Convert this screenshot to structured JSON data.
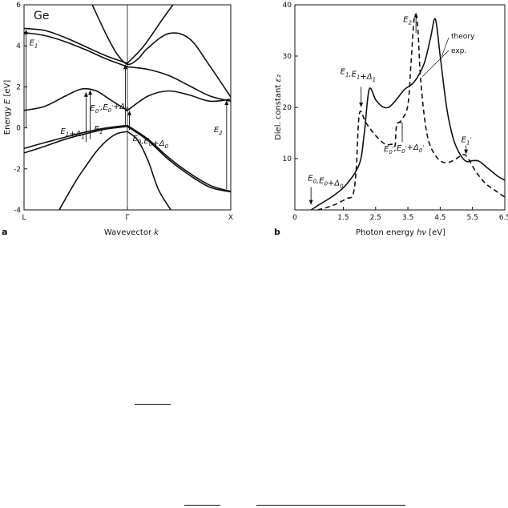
{
  "chart_data": [
    {
      "type": "line",
      "panel_label": "a",
      "title": "Ge",
      "xlabel": "Wavevector",
      "xlabel_symbol": "k",
      "ylabel": "Energy",
      "ylabel_symbol": "E",
      "ylabel_unit": "[eV]",
      "xlim": [
        0,
        1
      ],
      "ylim": [
        -4,
        6
      ],
      "grid": false,
      "x_ticks": [
        {
          "label": "L",
          "x": 0
        },
        {
          "label": "Γ",
          "x": 0.5
        },
        {
          "label": "X",
          "x": 1
        }
      ],
      "y_ticks": [
        -4,
        -2,
        0,
        2,
        4,
        6
      ],
      "series": [
        {
          "x": [
            0,
            0.1,
            0.2,
            0.3,
            0.4,
            0.5
          ],
          "values": [
            -1.0,
            -0.72,
            -0.45,
            -0.2,
            0.0,
            0.12
          ]
        },
        {
          "x": [
            0,
            0.1,
            0.2,
            0.3,
            0.4,
            0.5
          ],
          "values": [
            -1.22,
            -0.9,
            -0.55,
            -0.28,
            -0.05,
            0.07
          ]
        },
        {
          "x": [
            0.17,
            0.25,
            0.3,
            0.35,
            0.4,
            0.45,
            0.5
          ],
          "values": [
            -4.0,
            -2.6,
            -1.85,
            -1.15,
            -0.62,
            -0.28,
            -0.18
          ]
        },
        {
          "x": [
            0.5,
            0.6,
            0.7,
            0.8,
            0.9,
            1.0
          ],
          "values": [
            0.12,
            -0.55,
            -1.45,
            -2.2,
            -2.8,
            -3.1
          ]
        },
        {
          "x": [
            0.5,
            0.6,
            0.7,
            0.8,
            0.9,
            1.0
          ],
          "values": [
            0.07,
            -0.62,
            -1.55,
            -2.3,
            -2.9,
            -3.12
          ]
        },
        {
          "x": [
            0.5,
            0.55,
            0.6,
            0.65,
            0.71
          ],
          "values": [
            -0.18,
            -0.6,
            -1.6,
            -3.0,
            -4.0
          ]
        },
        {
          "x": [
            0,
            0.1,
            0.2,
            0.28,
            0.35,
            0.42,
            0.5
          ],
          "values": [
            0.85,
            1.05,
            1.55,
            1.9,
            1.8,
            1.35,
            0.85
          ]
        },
        {
          "x": [
            0.5,
            0.6,
            0.7,
            0.8,
            0.9,
            1.0
          ],
          "values": [
            0.85,
            1.55,
            1.8,
            1.6,
            1.3,
            1.4
          ]
        },
        {
          "x": [
            0,
            0.1,
            0.2,
            0.3,
            0.4,
            0.5
          ],
          "values": [
            4.85,
            4.75,
            4.4,
            3.95,
            3.5,
            3.15
          ]
        },
        {
          "x": [
            0,
            0.1,
            0.2,
            0.3,
            0.4,
            0.5
          ],
          "values": [
            4.65,
            4.5,
            4.2,
            3.8,
            3.35,
            2.98
          ]
        },
        {
          "x": [
            0.33,
            0.4,
            0.45,
            0.5,
            0.55,
            0.6,
            0.7,
            0.8,
            0.9,
            1.0
          ],
          "values": [
            6.0,
            4.5,
            3.6,
            3.1,
            3.35,
            3.9,
            4.6,
            4.35,
            3.0,
            1.5
          ]
        },
        {
          "x": [
            0.5,
            0.6,
            0.7,
            0.8,
            0.9,
            1.0
          ],
          "values": [
            2.98,
            2.85,
            2.55,
            2.05,
            1.55,
            1.3
          ]
        },
        {
          "x": [
            0.5,
            0.58,
            0.67,
            0.72
          ],
          "values": [
            3.15,
            4.0,
            5.3,
            6.0
          ]
        }
      ],
      "annotations": [
        {
          "label": "E₁'",
          "x": 0.01,
          "y_from": 0,
          "y_to": 4.8
        },
        {
          "label": "E₀',E₀'+Δ₀",
          "x": 0.49,
          "y_from": 0.1,
          "y_to": 3.1
        },
        {
          "label": "E₁+Δ₁",
          "x": 0.3,
          "y_from": -0.7,
          "y_to": 1.75
        },
        {
          "label": "E₁",
          "x": 0.32,
          "y_from": -0.55,
          "y_to": 1.85
        },
        {
          "label": "E₀,E₀+Δ₀",
          "x": 0.51,
          "y_from": -0.1,
          "y_to": 0.85
        },
        {
          "label": "E₂",
          "x": 0.98,
          "y_from": -3.0,
          "y_to": 1.35
        }
      ]
    },
    {
      "type": "line",
      "panel_label": "b",
      "xlabel": "Photon energy",
      "xlabel_symbol": "hν",
      "xlabel_unit": "[eV]",
      "ylabel": "Diel. constant",
      "ylabel_symbol": "ε₂",
      "xlim": [
        0,
        6.5
      ],
      "ylim": [
        0,
        40
      ],
      "grid": false,
      "x_ticks": [
        "0",
        "1.5",
        "2.5",
        "3.5",
        "4.5",
        "5.5",
        "6.5"
      ],
      "x_tick_values": [
        0,
        1.5,
        2.5,
        3.5,
        4.5,
        5.5,
        6.5
      ],
      "y_ticks": [
        10,
        20,
        30,
        40
      ],
      "series": [
        {
          "name": "theory",
          "style": "solid",
          "x": [
            0.5,
            0.8,
            1.2,
            1.6,
            2.0,
            2.15,
            2.3,
            2.5,
            2.7,
            2.9,
            3.1,
            3.4,
            3.7,
            4.0,
            4.2,
            4.35,
            4.5,
            4.7,
            4.9,
            5.1,
            5.3,
            5.5,
            5.7,
            6.0,
            6.3,
            6.5
          ],
          "values": [
            0,
            1.2,
            2.8,
            5.0,
            9.0,
            15.0,
            23.5,
            21.5,
            20.2,
            20.0,
            21.2,
            23.5,
            25.0,
            28.5,
            33.5,
            37.2,
            30.0,
            20.0,
            14.0,
            11.0,
            9.5,
            9.6,
            9.5,
            8.0,
            6.5,
            5.8
          ]
        },
        {
          "name": "exp.",
          "style": "dashed",
          "x": [
            0.7,
            1.0,
            1.3,
            1.6,
            1.8,
            1.9,
            2.0,
            2.2,
            2.5,
            2.8,
            3.0,
            3.1,
            3.15,
            3.3,
            3.5,
            3.6,
            3.7,
            3.8,
            3.9,
            4.1,
            4.4,
            4.7,
            5.0,
            5.2,
            5.35,
            5.6,
            5.9,
            6.2,
            6.5
          ],
          "values": [
            0,
            0.5,
            1.2,
            2.2,
            3.0,
            8.0,
            18.8,
            17.0,
            14.5,
            12.8,
            12.8,
            12.5,
            16.5,
            17.5,
            20.5,
            29.0,
            37.5,
            36.0,
            25.0,
            14.5,
            10.2,
            9.2,
            10.0,
            10.8,
            10.2,
            7.5,
            5.2,
            3.8,
            2.5
          ]
        }
      ],
      "legend": [
        "theory",
        "exp."
      ],
      "annotations": [
        {
          "label": "E₂",
          "x": 3.75,
          "y": 38.5
        },
        {
          "label": "E₁,E₁+Δ₁",
          "x": 2.05,
          "y": 20.0
        },
        {
          "label": "E₀',E₀'+Δ₀'",
          "x": 3.25,
          "y": 17.0
        },
        {
          "label": "E₁'",
          "x": 5.3,
          "y": 11.0
        },
        {
          "label": "E₀,E₀+Δ₀",
          "x": 0.5,
          "y": 1.0
        }
      ]
    }
  ]
}
